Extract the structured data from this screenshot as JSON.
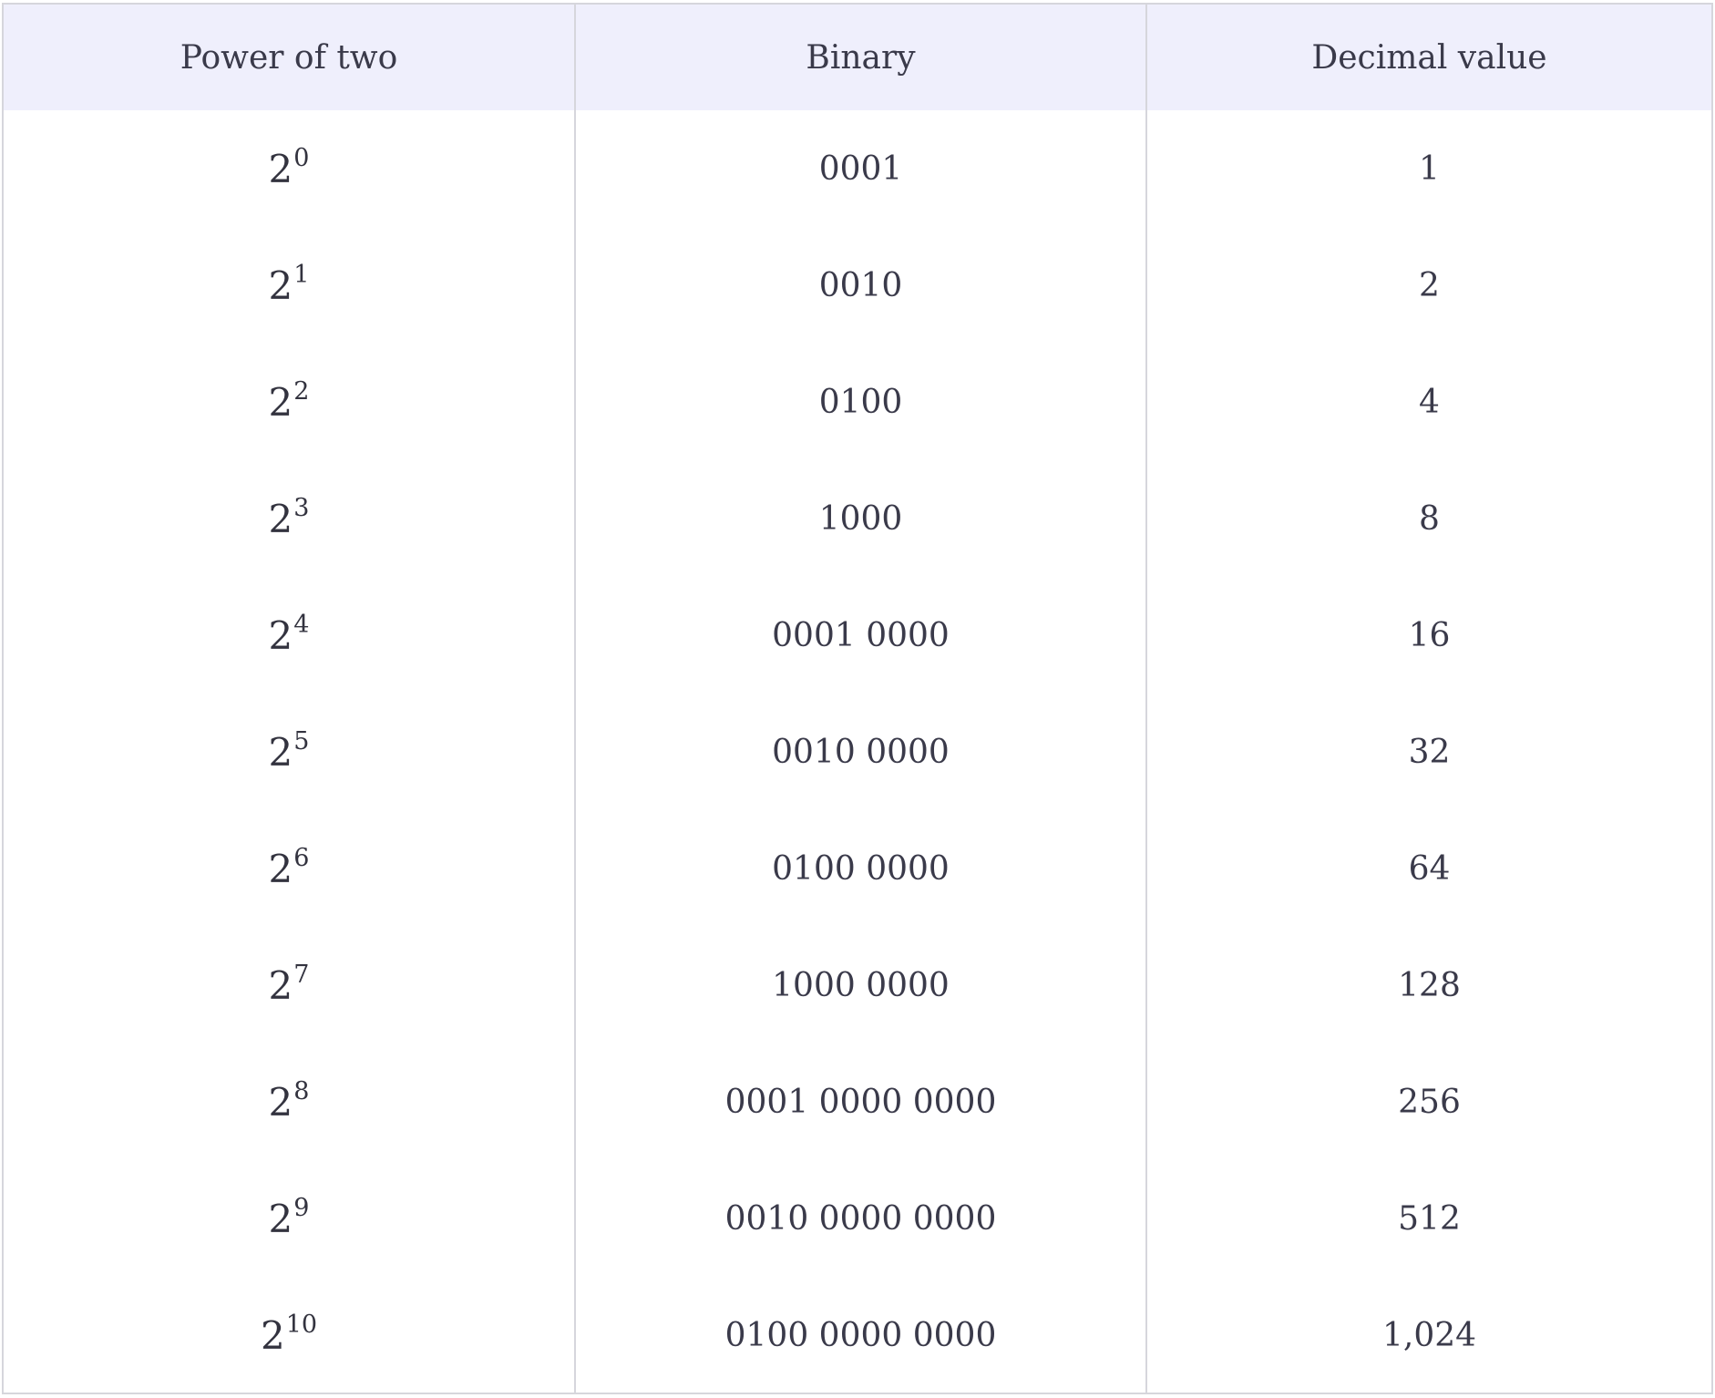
{
  "table": {
    "headers": {
      "power": "Power of two",
      "binary": "Binary",
      "decimal": "Decimal value"
    },
    "rows": [
      {
        "base": "2",
        "exponent": "0",
        "binary": "0001",
        "decimal": "1"
      },
      {
        "base": "2",
        "exponent": "1",
        "binary": "0010",
        "decimal": "2"
      },
      {
        "base": "2",
        "exponent": "2",
        "binary": "0100",
        "decimal": "4"
      },
      {
        "base": "2",
        "exponent": "3",
        "binary": "1000",
        "decimal": "8"
      },
      {
        "base": "2",
        "exponent": "4",
        "binary": "0001 0000",
        "decimal": "16"
      },
      {
        "base": "2",
        "exponent": "5",
        "binary": "0010 0000",
        "decimal": "32"
      },
      {
        "base": "2",
        "exponent": "6",
        "binary": "0100 0000",
        "decimal": "64"
      },
      {
        "base": "2",
        "exponent": "7",
        "binary": "1000 0000",
        "decimal": "128"
      },
      {
        "base": "2",
        "exponent": "8",
        "binary": "0001 0000 0000",
        "decimal": "256"
      },
      {
        "base": "2",
        "exponent": "9",
        "binary": "0010 0000 0000",
        "decimal": "512"
      },
      {
        "base": "2",
        "exponent": "10",
        "binary": "0100 0000 0000",
        "decimal": "1,024"
      }
    ]
  },
  "colors": {
    "header_background": "#efeffc",
    "border": "#d6d6dc",
    "text": "#3a3a4a"
  }
}
